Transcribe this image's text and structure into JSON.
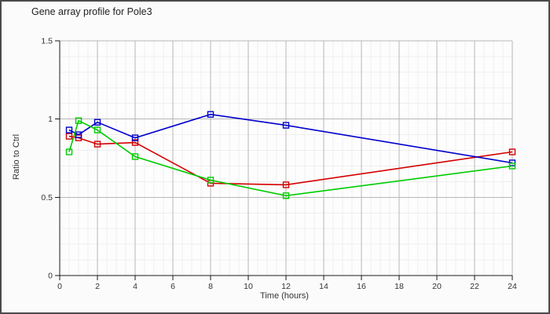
{
  "window": {
    "title": "Gene array profile for Pole3"
  },
  "colors": {
    "background": "#fbfbfb",
    "plot_background": "#fdfdfd",
    "border": "#4a4a4a",
    "axis": "#1a1a1a",
    "text": "#333333",
    "grid_major": "#b8b8b8",
    "grid_minor": "#eeeeee",
    "series_red": "#d40000",
    "series_blue": "#0000cc",
    "series_green": "#00cc00"
  },
  "chart_data": {
    "type": "line",
    "title": "Gene array profile for Pole3",
    "xlabel": "Time (hours)",
    "ylabel": "Ratio to Ctrl",
    "x": [
      0.5,
      1,
      2,
      4,
      8,
      12,
      24
    ],
    "series": [
      {
        "name": "series-red",
        "color": "#d40000",
        "values": [
          0.89,
          0.88,
          0.84,
          0.85,
          0.59,
          0.58,
          0.79
        ]
      },
      {
        "name": "series-blue",
        "color": "#0000cc",
        "values": [
          0.93,
          0.9,
          0.98,
          0.88,
          1.03,
          0.96,
          0.72
        ]
      },
      {
        "name": "series-green",
        "color": "#00cc00",
        "values": [
          0.79,
          0.99,
          0.93,
          0.76,
          0.61,
          0.51,
          0.7
        ]
      }
    ],
    "xlim": [
      0,
      24
    ],
    "ylim": [
      0,
      1.5
    ],
    "xticks": {
      "values": [
        0,
        2,
        4,
        6,
        8,
        10,
        12,
        14,
        16,
        18,
        20,
        22,
        24
      ],
      "labels": [
        "0",
        "2",
        "4",
        "6",
        "8",
        "10",
        "12",
        "14",
        "16",
        "18",
        "20",
        "22",
        "24"
      ]
    },
    "yticks": {
      "values": [
        0,
        0.5,
        1,
        1.5
      ],
      "labels": [
        "0",
        "0.5",
        "1",
        "1.5"
      ]
    },
    "grid": {
      "on": true,
      "x_minor_step": 0.5,
      "y_minor_step": 0.1
    },
    "marker": "open-square",
    "legend": "none"
  }
}
